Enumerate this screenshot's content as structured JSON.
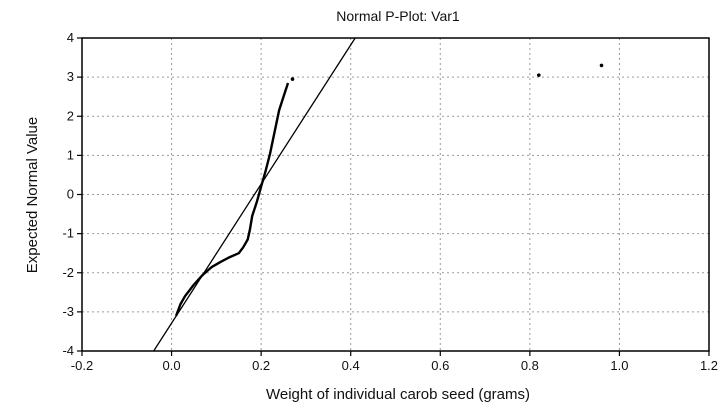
{
  "chart_data": {
    "type": "scatter",
    "title": "Normal P-Plot: Var1",
    "xlabel": "Weight of individual carob seed (grams)",
    "ylabel": "Expected Normal Value",
    "xlim": [
      -0.2,
      1.2
    ],
    "ylim": [
      -4,
      4
    ],
    "x_ticks": [
      "-0.2",
      "0.0",
      "0.2",
      "0.4",
      "0.6",
      "0.8",
      "1.0",
      "1.2"
    ],
    "y_ticks": [
      "-4",
      "-3",
      "-2",
      "-1",
      "0",
      "1",
      "2",
      "3",
      "4"
    ],
    "grid": true,
    "series": [
      {
        "points": [
          [
            0.01,
            -3.1
          ],
          [
            0.02,
            -2.8
          ],
          [
            0.03,
            -2.6
          ],
          [
            0.05,
            -2.3
          ],
          [
            0.07,
            -2.05
          ],
          [
            0.09,
            -1.85
          ],
          [
            0.11,
            -1.72
          ],
          [
            0.13,
            -1.6
          ],
          [
            0.15,
            -1.5
          ],
          [
            0.16,
            -1.35
          ],
          [
            0.17,
            -1.15
          ],
          [
            0.175,
            -0.9
          ],
          [
            0.18,
            -0.55
          ],
          [
            0.19,
            -0.2
          ],
          [
            0.2,
            0.2
          ],
          [
            0.21,
            0.6
          ],
          [
            0.22,
            1.05
          ],
          [
            0.23,
            1.6
          ],
          [
            0.24,
            2.15
          ],
          [
            0.25,
            2.5
          ],
          [
            0.26,
            2.85
          ]
        ],
        "outliers": [
          [
            0.27,
            2.95
          ],
          [
            0.82,
            3.05
          ],
          [
            0.96,
            3.3
          ]
        ]
      }
    ],
    "reference_line": {
      "x": [
        -0.04,
        0.41
      ],
      "y": [
        -4,
        4
      ]
    }
  }
}
